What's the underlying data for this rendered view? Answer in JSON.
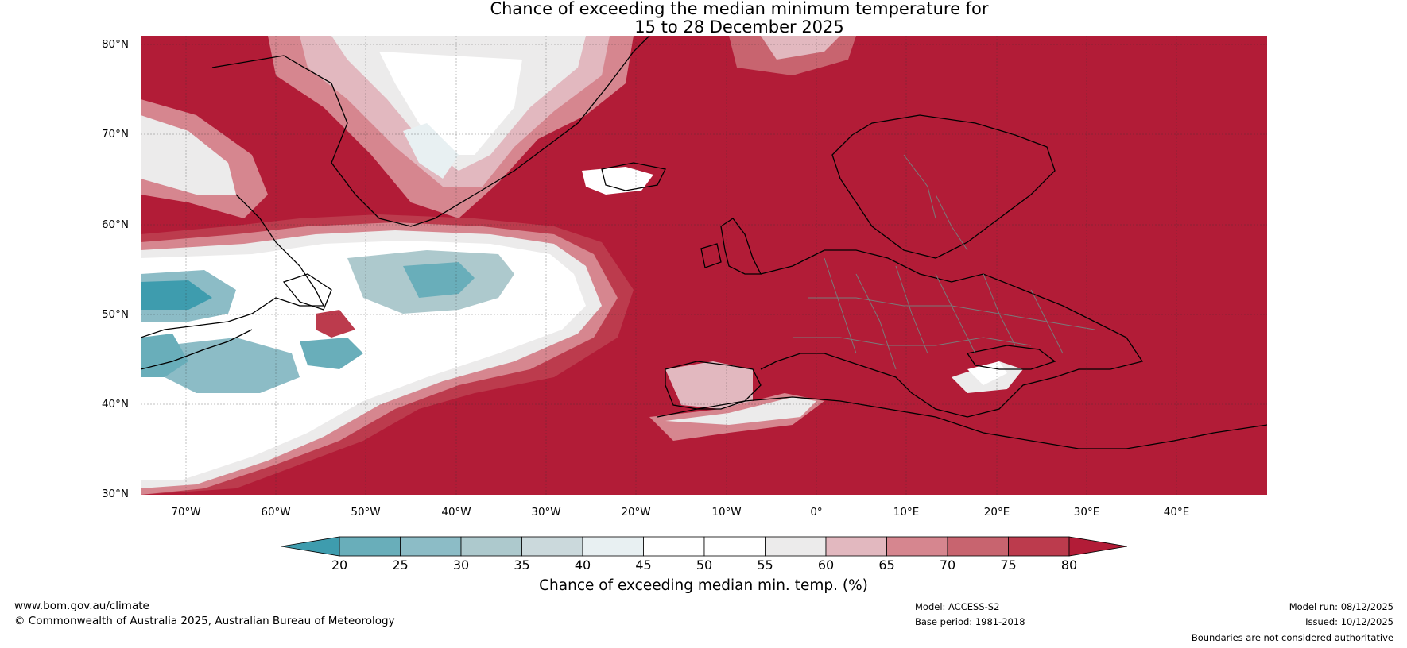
{
  "title": {
    "line1": "Chance of exceeding the median minimum temperature for",
    "line2": "15 to 28 December 2025"
  },
  "axes": {
    "lat_labels": [
      "80°N",
      "70°N",
      "60°N",
      "50°N",
      "40°N",
      "30°N"
    ],
    "lon_labels": [
      "70°W",
      "60°W",
      "50°W",
      "40°W",
      "30°W",
      "20°W",
      "10°W",
      "0°",
      "10°E",
      "20°E",
      "30°E",
      "40°E"
    ],
    "lat_range": [
      30,
      81
    ],
    "lon_range": [
      -75,
      50
    ]
  },
  "colorbar": {
    "ticks": [
      "20",
      "25",
      "30",
      "35",
      "40",
      "45",
      "50",
      "55",
      "60",
      "65",
      "70",
      "75",
      "80"
    ],
    "colors": [
      "#3e9cae",
      "#69aeba",
      "#8cbcc6",
      "#adc9cd",
      "#cbd9dc",
      "#e8f0f2",
      "#ffffff",
      "#ffffff",
      "#ecebeb",
      "#e2b8bf",
      "#d6868f",
      "#c8646f",
      "#bc3b4d",
      "#b21c37"
    ],
    "label": "Chance of exceeding median min. temp. (%)"
  },
  "footer": {
    "website": "www.bom.gov.au/climate",
    "copyright": "© Commonwealth of Australia 2025, Australian Bureau of Meteorology",
    "model": "Model: ACCESS-S2",
    "base_period": "Base period: 1981-2018",
    "model_run": "Model run: 08/12/2025",
    "issued": "Issued: 10/12/2025",
    "disclaimer": "Boundaries are not considered authoritative"
  }
}
